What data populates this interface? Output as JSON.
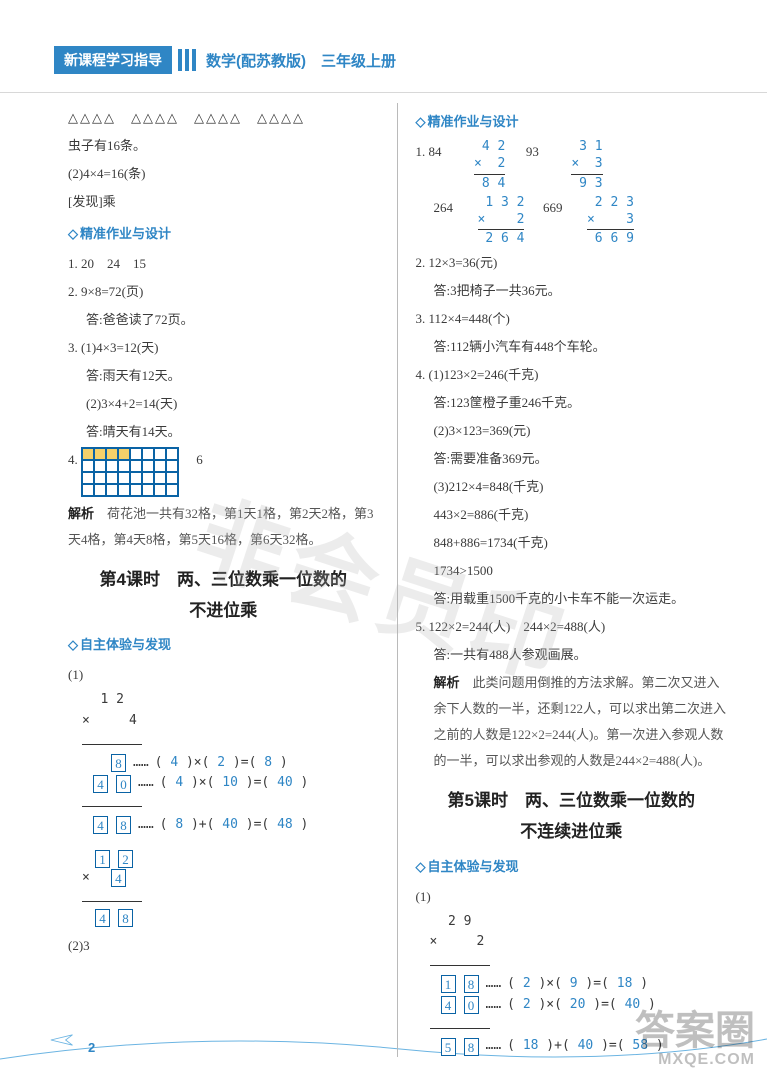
{
  "header": {
    "badge": "新课程学习指导",
    "title": "数学(配苏教版)　三年级上册"
  },
  "left": {
    "triangles": "△△△△　△△△△　△△△△　△△△△",
    "line_bugs": "虫子有16条。",
    "line_eq": "(2)4×4=16(条)",
    "line_find": "[发现]乘",
    "sec1_heading": "精准作业与设计",
    "q1": "1. 20　24　15",
    "q2a": "2. 9×8=72(页)",
    "q2b": "答:爸爸读了72页。",
    "q3a": "3. (1)4×3=12(天)",
    "q3b": "答:雨天有12天。",
    "q3c": "(2)3×4+2=14(天)",
    "q3d": "答:晴天有14天。",
    "q4_label": "4.",
    "q4_num": "6",
    "q4_ex_label": "解析",
    "q4_ex": "　荷花池一共有32格，第1天1格，第2天2格，第3天4格，第4天8格，第5天16格，第6天32格。",
    "sec2_title_l1": "第4课时　两、三位数乘一位数的",
    "sec2_title_l2": "不进位乘",
    "sec2_heading": "自主体验与发现",
    "work1": {
      "top": "1 2",
      "mult": "×     4",
      "r1_box": "8",
      "r1_expr_a": "4",
      "r1_expr_b": "2",
      "r1_expr_c": "8",
      "r2_box_a": "4",
      "r2_box_b": "0",
      "r2_expr_a": "4",
      "r2_expr_b": "10",
      "r2_expr_c": "40",
      "r3_box_a": "4",
      "r3_box_b": "8",
      "r3_expr_a": "8",
      "r3_expr_b": "40",
      "r3_expr_c": "48"
    },
    "work2": {
      "a": "1",
      "b": "2",
      "mult_box": "4",
      "res_a": "4",
      "res_b": "8"
    },
    "tail": "(2)3"
  },
  "right": {
    "sec1_heading": "精准作业与设计",
    "row1_plain1": "1. 84",
    "row1_plain2": "93",
    "mul1": {
      "top": "4 2",
      "mid": "×  2",
      "res": "8 4"
    },
    "mul2": {
      "top": "3 1",
      "mid": "×  3",
      "res": "9 3"
    },
    "row2_plain1": "264",
    "row2_plain2": "669",
    "mul3": {
      "top": "1 3 2",
      "mid": "×    2",
      "res": "2 6 4"
    },
    "mul4": {
      "top": "2 2 3",
      "mid": "×    3",
      "res": "6 6 9"
    },
    "q2a": "2. 12×3=36(元)",
    "q2b": "答:3把椅子一共36元。",
    "q3a": "3. 112×4=448(个)",
    "q3b": "答:112辆小汽车有448个车轮。",
    "q4a": "4. (1)123×2=246(千克)",
    "q4b": "答:123筐橙子重246千克。",
    "q4c": "(2)3×123=369(元)",
    "q4d": "答:需要准备369元。",
    "q4e": "(3)212×4=848(千克)",
    "q4f": "443×2=886(千克)",
    "q4g": "848+886=1734(千克)",
    "q4h": "1734>1500",
    "q4i": "答:用载重1500千克的小卡车不能一次运走。",
    "q5a": "5. 122×2=244(人)　244×2=488(人)",
    "q5b": "答:一共有488人参观画展。",
    "q5_ex_label": "解析",
    "q5_ex": "　此类问题用倒推的方法求解。第二次又进入余下人数的一半，还剩122人，可以求出第二次进入之前的人数是122×2=244(人)。第一次进入参观人数的一半，可以求出参观的人数是244×2=488(人)。",
    "sec2_title_l1": "第5课时　两、三位数乘一位数的",
    "sec2_title_l2": "不连续进位乘",
    "sec2_heading": "自主体验与发现",
    "work": {
      "top": "2 9",
      "mult": "×     2",
      "r1a": "1",
      "r1b": "8",
      "e1a": "2",
      "e1b": "9",
      "e1c": "18",
      "r2a": "4",
      "r2b": "0",
      "e2a": "2",
      "e2b": "20",
      "e2c": "40",
      "r3a": "5",
      "r3b": "8",
      "e3a": "18",
      "e3b": "40",
      "e3c": "58"
    }
  },
  "pagenum": "2",
  "watermark": "非会员印",
  "corner": {
    "big": "答案圈",
    "url": "MXQE.COM"
  },
  "colors": {
    "accent": "#2f86c5",
    "text": "#3a3a3a",
    "grid_border": "#0a63a5",
    "grid_shade": "#f4d06a"
  }
}
